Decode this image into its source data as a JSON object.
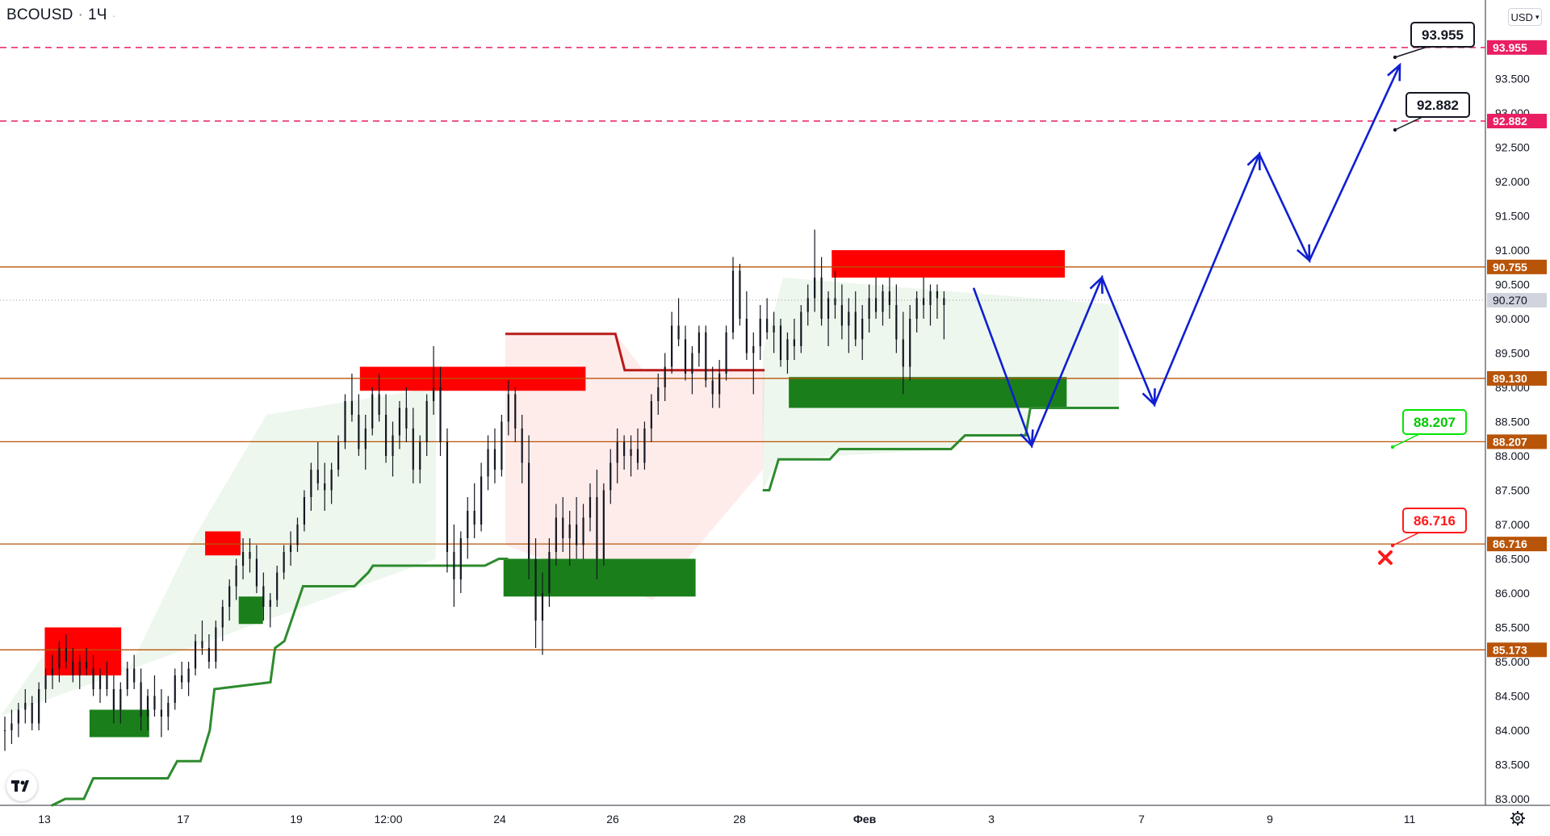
{
  "header": {
    "symbol": "BCOUSD",
    "interval": "1Ч",
    "currency": "USD"
  },
  "colors": {
    "bull": "#1a7f1a",
    "bear": "#ff1a1a",
    "candle": "#131722",
    "level": "#b85408",
    "target": "#e91e63",
    "projection": "#0f1fd1",
    "support_green": "#2e8b2e",
    "resistance_red": "#b71c1c"
  },
  "chart_data": {
    "type": "candlestick",
    "ylim": [
      82.9,
      94.8
    ],
    "price_ticks": [
      "94.000",
      "93.500",
      "93.000",
      "92.500",
      "92.000",
      "91.500",
      "91.000",
      "90.500",
      "90.000",
      "89.500",
      "89.000",
      "88.500",
      "88.000",
      "87.500",
      "87.000",
      "86.500",
      "86.000",
      "85.500",
      "85.000",
      "84.500",
      "84.000",
      "83.500",
      "83.000"
    ],
    "x_labels": [
      "13",
      "17",
      "19",
      "12:00",
      "24",
      "26",
      "28",
      "Фев",
      "3",
      "7",
      "9",
      "11"
    ],
    "last_price": "90.270",
    "levels": [
      {
        "price": 93.955,
        "label": "93.955",
        "style": "dashed",
        "kind": "target"
      },
      {
        "price": 92.882,
        "label": "92.882",
        "style": "dashed",
        "kind": "target"
      },
      {
        "price": 90.755,
        "label": "90.755",
        "style": "solid",
        "kind": "level"
      },
      {
        "price": 89.13,
        "label": "89.130",
        "style": "solid",
        "kind": "level"
      },
      {
        "price": 88.207,
        "label": "88.207",
        "style": "solid",
        "kind": "level"
      },
      {
        "price": 86.716,
        "label": "86.716",
        "style": "solid",
        "kind": "level"
      },
      {
        "price": 85.173,
        "label": "85.173",
        "style": "solid",
        "kind": "level"
      }
    ],
    "callouts": [
      {
        "label": "93.955",
        "price": 93.955,
        "style": "black"
      },
      {
        "label": "92.882",
        "price": 92.882,
        "style": "black"
      },
      {
        "label": "88.207",
        "price": 88.207,
        "style": "green"
      },
      {
        "label": "86.716",
        "price": 86.716,
        "style": "red"
      }
    ],
    "resistance_zones": [
      {
        "t0": 48,
        "t1": 130,
        "p0": 84.8,
        "p1": 85.5
      },
      {
        "t0": 220,
        "t1": 258,
        "p0": 86.55,
        "p1": 86.9
      },
      {
        "t0": 386,
        "t1": 628,
        "p0": 88.95,
        "p1": 89.3
      },
      {
        "t0": 892,
        "t1": 1142,
        "p0": 90.6,
        "p1": 91.0
      }
    ],
    "support_zones": [
      {
        "t0": 96,
        "t1": 160,
        "p0": 83.9,
        "p1": 84.3
      },
      {
        "t0": 256,
        "t1": 282,
        "p0": 85.55,
        "p1": 85.95
      },
      {
        "t0": 540,
        "t1": 746,
        "p0": 85.95,
        "p1": 86.5
      },
      {
        "t0": 846,
        "t1": 1144,
        "p0": 88.7,
        "p1": 89.15
      }
    ],
    "trailing_support": [
      [
        55,
        82.9
      ],
      [
        70,
        83.0
      ],
      [
        90,
        83.0
      ],
      [
        100,
        83.3
      ],
      [
        180,
        83.3
      ],
      [
        190,
        83.55
      ],
      [
        215,
        83.55
      ],
      [
        225,
        84.0
      ],
      [
        230,
        84.6
      ],
      [
        290,
        84.7
      ],
      [
        295,
        85.2
      ],
      [
        305,
        85.3
      ],
      [
        315,
        85.7
      ],
      [
        325,
        86.1
      ],
      [
        380,
        86.1
      ],
      [
        395,
        86.3
      ],
      [
        400,
        86.4
      ],
      [
        520,
        86.4
      ],
      [
        535,
        86.5
      ],
      [
        545,
        86.5
      ]
    ],
    "trailing_support_2": [
      [
        818,
        87.5
      ],
      [
        825,
        87.5
      ],
      [
        835,
        87.95
      ],
      [
        890,
        87.95
      ],
      [
        900,
        88.1
      ],
      [
        1020,
        88.1
      ],
      [
        1035,
        88.3
      ],
      [
        1100,
        88.3
      ],
      [
        1105,
        88.7
      ],
      [
        1200,
        88.7
      ]
    ],
    "trailing_resistance": [
      [
        542,
        89.78
      ],
      [
        660,
        89.78
      ],
      [
        670,
        89.25
      ],
      [
        820,
        89.25
      ]
    ],
    "projection": [
      [
        1206,
        90.45
      ],
      [
        1278,
        88.15
      ],
      [
        1365,
        90.6
      ],
      [
        1430,
        88.75
      ],
      [
        1560,
        92.4
      ],
      [
        1622,
        90.85
      ],
      [
        1734,
        93.7
      ]
    ],
    "candles": [
      [
        84.0,
        84.2,
        83.7,
        84.0
      ],
      [
        84.0,
        84.3,
        83.8,
        84.1
      ],
      [
        84.1,
        84.4,
        83.9,
        84.3
      ],
      [
        84.3,
        84.6,
        84.1,
        84.4
      ],
      [
        84.4,
        84.5,
        84.0,
        84.1
      ],
      [
        84.1,
        84.7,
        84.0,
        84.6
      ],
      [
        84.6,
        84.9,
        84.4,
        84.8
      ],
      [
        84.8,
        85.1,
        84.6,
        84.9
      ],
      [
        84.9,
        85.3,
        84.7,
        85.2
      ],
      [
        85.2,
        85.4,
        84.9,
        85.0
      ],
      [
        85.0,
        85.2,
        84.7,
        84.8
      ],
      [
        84.8,
        85.1,
        84.6,
        85.0
      ],
      [
        85.0,
        85.2,
        84.8,
        84.9
      ],
      [
        84.9,
        85.1,
        84.5,
        84.6
      ],
      [
        84.6,
        84.9,
        84.4,
        84.8
      ],
      [
        84.8,
        85.0,
        84.5,
        84.6
      ],
      [
        84.6,
        84.8,
        84.1,
        84.3
      ],
      [
        84.3,
        84.7,
        84.1,
        84.6
      ],
      [
        84.6,
        85.0,
        84.5,
        84.9
      ],
      [
        84.9,
        85.1,
        84.6,
        84.7
      ],
      [
        84.7,
        84.9,
        84.0,
        84.2
      ],
      [
        84.2,
        84.6,
        84.0,
        84.5
      ],
      [
        84.5,
        84.8,
        84.2,
        84.3
      ],
      [
        84.3,
        84.6,
        83.9,
        84.2
      ],
      [
        84.2,
        84.5,
        84.0,
        84.4
      ],
      [
        84.4,
        84.9,
        84.3,
        84.8
      ],
      [
        84.8,
        85.0,
        84.6,
        84.7
      ],
      [
        84.7,
        85.0,
        84.5,
        84.9
      ],
      [
        84.9,
        85.4,
        84.8,
        85.3
      ],
      [
        85.3,
        85.6,
        85.1,
        85.2
      ],
      [
        85.2,
        85.4,
        84.9,
        85.0
      ],
      [
        85.0,
        85.6,
        84.9,
        85.5
      ],
      [
        85.5,
        85.9,
        85.3,
        85.8
      ],
      [
        85.8,
        86.2,
        85.6,
        86.1
      ],
      [
        86.1,
        86.5,
        85.9,
        86.4
      ],
      [
        86.4,
        86.8,
        86.2,
        86.6
      ],
      [
        86.6,
        86.8,
        86.3,
        86.5
      ],
      [
        86.5,
        86.7,
        86.0,
        86.1
      ],
      [
        86.1,
        86.3,
        85.6,
        85.8
      ],
      [
        85.8,
        86.0,
        85.5,
        85.9
      ],
      [
        85.9,
        86.4,
        85.8,
        86.3
      ],
      [
        86.3,
        86.7,
        86.2,
        86.6
      ],
      [
        86.6,
        86.9,
        86.4,
        86.7
      ],
      [
        86.7,
        87.1,
        86.6,
        87.0
      ],
      [
        87.0,
        87.5,
        86.9,
        87.4
      ],
      [
        87.4,
        87.9,
        87.2,
        87.8
      ],
      [
        87.8,
        88.2,
        87.5,
        87.6
      ],
      [
        87.6,
        87.9,
        87.2,
        87.5
      ],
      [
        87.5,
        87.9,
        87.3,
        87.8
      ],
      [
        87.8,
        88.3,
        87.7,
        88.2
      ],
      [
        88.2,
        88.9,
        88.1,
        88.8
      ],
      [
        88.8,
        89.2,
        88.5,
        88.6
      ],
      [
        88.6,
        88.9,
        88.0,
        88.1
      ],
      [
        88.1,
        88.6,
        87.8,
        88.4
      ],
      [
        88.4,
        89.0,
        88.3,
        88.9
      ],
      [
        88.9,
        89.2,
        88.5,
        88.6
      ],
      [
        88.6,
        88.9,
        87.9,
        88.0
      ],
      [
        88.0,
        88.5,
        87.7,
        88.3
      ],
      [
        88.3,
        88.8,
        88.1,
        88.7
      ],
      [
        88.7,
        89.0,
        88.2,
        88.4
      ],
      [
        88.4,
        88.7,
        87.6,
        87.8
      ],
      [
        87.8,
        88.3,
        87.6,
        88.2
      ],
      [
        88.2,
        88.9,
        88.0,
        88.8
      ],
      [
        88.8,
        89.6,
        88.6,
        89.0
      ],
      [
        89.0,
        89.3,
        88.0,
        88.2
      ],
      [
        88.2,
        88.4,
        86.3,
        86.6
      ],
      [
        86.6,
        87.0,
        85.8,
        86.2
      ],
      [
        86.2,
        86.9,
        86.0,
        86.8
      ],
      [
        86.8,
        87.4,
        86.5,
        87.2
      ],
      [
        87.2,
        87.6,
        86.8,
        87.0
      ],
      [
        87.0,
        87.9,
        86.9,
        87.7
      ],
      [
        87.7,
        88.3,
        87.5,
        88.1
      ],
      [
        88.1,
        88.4,
        87.6,
        87.8
      ],
      [
        87.8,
        88.6,
        87.7,
        88.5
      ],
      [
        88.5,
        89.1,
        88.3,
        88.9
      ],
      [
        88.9,
        89.0,
        88.2,
        88.4
      ],
      [
        88.4,
        88.6,
        87.6,
        87.9
      ],
      [
        87.9,
        88.3,
        86.2,
        86.5
      ],
      [
        86.5,
        86.8,
        85.2,
        85.6
      ],
      [
        85.6,
        86.3,
        85.1,
        86.0
      ],
      [
        86.0,
        86.8,
        85.8,
        86.6
      ],
      [
        86.6,
        87.3,
        86.4,
        87.1
      ],
      [
        87.1,
        87.4,
        86.6,
        86.8
      ],
      [
        86.8,
        87.2,
        86.4,
        87.0
      ],
      [
        87.0,
        87.4,
        86.5,
        86.7
      ],
      [
        86.7,
        87.3,
        86.5,
        87.1
      ],
      [
        87.1,
        87.6,
        86.9,
        87.4
      ],
      [
        87.4,
        87.8,
        86.2,
        86.5
      ],
      [
        86.5,
        87.6,
        86.4,
        87.5
      ],
      [
        87.5,
        88.1,
        87.3,
        87.9
      ],
      [
        87.9,
        88.4,
        87.6,
        88.2
      ],
      [
        88.2,
        88.3,
        87.8,
        88.0
      ],
      [
        88.0,
        88.3,
        87.7,
        88.1
      ],
      [
        88.1,
        88.4,
        87.8,
        87.9
      ],
      [
        87.9,
        88.5,
        87.8,
        88.4
      ],
      [
        88.4,
        88.9,
        88.2,
        88.8
      ],
      [
        88.8,
        89.2,
        88.6,
        89.0
      ],
      [
        89.0,
        89.5,
        88.8,
        89.3
      ],
      [
        89.3,
        90.1,
        89.2,
        89.9
      ],
      [
        89.9,
        90.3,
        89.6,
        89.7
      ],
      [
        89.7,
        89.9,
        89.1,
        89.2
      ],
      [
        89.2,
        89.6,
        88.9,
        89.5
      ],
      [
        89.5,
        89.9,
        89.3,
        89.8
      ],
      [
        89.8,
        89.9,
        89.0,
        89.1
      ],
      [
        89.1,
        89.3,
        88.7,
        88.9
      ],
      [
        88.9,
        89.4,
        88.7,
        89.2
      ],
      [
        89.2,
        89.9,
        89.1,
        89.8
      ],
      [
        89.8,
        90.9,
        89.7,
        90.7
      ],
      [
        90.7,
        90.8,
        89.9,
        90.0
      ],
      [
        90.0,
        90.4,
        89.4,
        89.5
      ],
      [
        89.5,
        89.8,
        88.9,
        89.6
      ],
      [
        89.6,
        90.2,
        89.4,
        90.0
      ],
      [
        90.0,
        90.3,
        89.7,
        89.8
      ],
      [
        89.8,
        90.1,
        89.5,
        89.9
      ],
      [
        89.9,
        90.0,
        89.3,
        89.4
      ],
      [
        89.4,
        89.8,
        89.2,
        89.7
      ],
      [
        89.7,
        90.0,
        89.4,
        89.6
      ],
      [
        89.6,
        90.2,
        89.5,
        90.1
      ],
      [
        90.1,
        90.5,
        89.9,
        90.3
      ],
      [
        90.3,
        91.3,
        90.1,
        90.6
      ],
      [
        90.6,
        90.9,
        89.9,
        90.0
      ],
      [
        90.0,
        90.4,
        89.6,
        90.3
      ],
      [
        90.3,
        90.7,
        90.0,
        90.2
      ],
      [
        90.2,
        90.5,
        89.7,
        89.9
      ],
      [
        89.9,
        90.3,
        89.5,
        90.1
      ],
      [
        90.1,
        90.4,
        89.6,
        89.7
      ],
      [
        89.7,
        90.2,
        89.4,
        90.0
      ],
      [
        90.0,
        90.5,
        89.8,
        90.3
      ],
      [
        90.3,
        90.6,
        90.0,
        90.1
      ],
      [
        90.1,
        90.5,
        89.9,
        90.4
      ],
      [
        90.4,
        90.6,
        90.0,
        90.2
      ],
      [
        90.2,
        90.5,
        89.5,
        89.7
      ],
      [
        89.7,
        90.1,
        88.9,
        89.3
      ],
      [
        89.3,
        90.2,
        89.1,
        90.0
      ],
      [
        90.0,
        90.4,
        89.8,
        90.3
      ],
      [
        90.3,
        90.6,
        90.0,
        90.2
      ],
      [
        90.2,
        90.5,
        89.9,
        90.4
      ],
      [
        90.4,
        90.5,
        90.0,
        90.3
      ],
      [
        90.3,
        90.4,
        89.7,
        90.2
      ]
    ]
  }
}
